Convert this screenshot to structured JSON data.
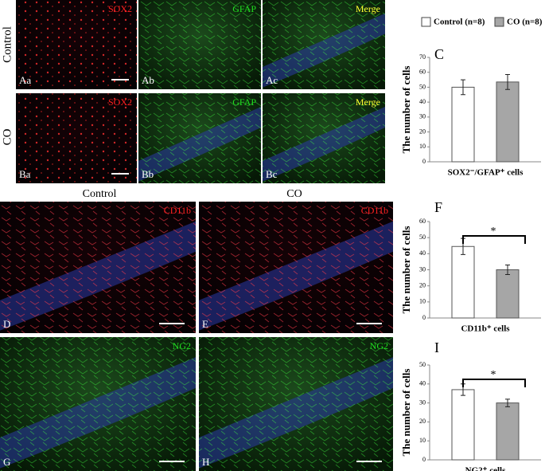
{
  "row_labels": [
    "Control",
    "CO"
  ],
  "column_labels": [
    "Control",
    "CO"
  ],
  "image_panels": [
    {
      "label": "Aa",
      "stain": "SOX2",
      "color": "#ff2020"
    },
    {
      "label": "Ab",
      "stain": "GFAP",
      "color": "#20e020"
    },
    {
      "label": "Ac",
      "stain": "Merge",
      "color": "#ffff30"
    },
    {
      "label": "Ba",
      "stain": "SOX2",
      "color": "#ff2020"
    },
    {
      "label": "Bb",
      "stain": "GFAP",
      "color": "#20e020"
    },
    {
      "label": "Bc",
      "stain": "Merge",
      "color": "#ffff30"
    },
    {
      "label": "D",
      "stain": "CD11b",
      "color": "#ff2020"
    },
    {
      "label": "E",
      "stain": "CD11b",
      "color": "#ff2020"
    },
    {
      "label": "G",
      "stain": "NG2",
      "color": "#20e020"
    },
    {
      "label": "H",
      "stain": "NG2",
      "color": "#20e020"
    }
  ],
  "chart_data": [
    {
      "type": "bar",
      "panel": "C",
      "ylabel": "The number of cells",
      "legend": "top",
      "categories": [
        "SOX2⁻/GFAP⁺ cells"
      ],
      "series": [
        {
          "name": "Control (n=8)",
          "color": "#ffffff",
          "values": [
            50
          ],
          "errors": [
            5
          ]
        },
        {
          "name": "CO (n=8)",
          "color": "#a6a6a6",
          "values": [
            53.5
          ],
          "errors": [
            5
          ]
        }
      ],
      "ylim": [
        0,
        70
      ],
      "yticks": [
        0,
        10,
        20,
        30,
        40,
        50,
        60,
        70
      ]
    },
    {
      "type": "bar",
      "panel": "F",
      "ylabel": "The number of cells",
      "annotation": "*",
      "categories": [
        "CD11b⁺ cells"
      ],
      "series": [
        {
          "color": "#ffffff",
          "values": [
            44.5
          ],
          "errors": [
            5
          ]
        },
        {
          "color": "#a6a6a6",
          "values": [
            30
          ],
          "errors": [
            3
          ]
        }
      ],
      "ylim": [
        0,
        60
      ],
      "yticks": [
        0,
        10,
        20,
        30,
        40,
        50,
        60
      ]
    },
    {
      "type": "bar",
      "panel": "I",
      "ylabel": "The number of cells",
      "annotation": "*",
      "categories": [
        "NG2⁺ cells"
      ],
      "series": [
        {
          "color": "#ffffff",
          "values": [
            37
          ],
          "errors": [
            3
          ]
        },
        {
          "color": "#a6a6a6",
          "values": [
            30
          ],
          "errors": [
            2
          ]
        }
      ],
      "ylim": [
        0,
        50
      ],
      "yticks": [
        0,
        10,
        20,
        30,
        40,
        50
      ]
    }
  ]
}
